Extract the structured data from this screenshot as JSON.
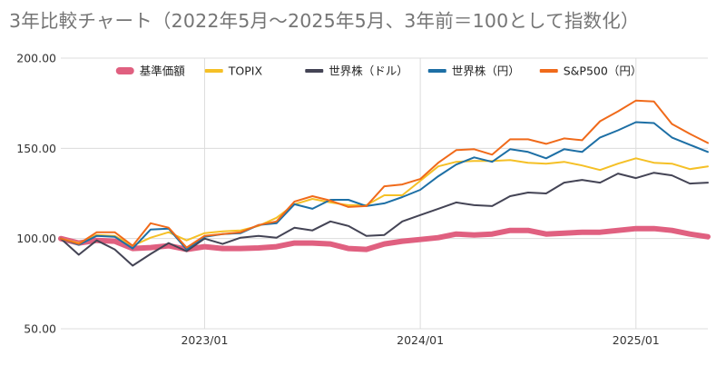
{
  "chart_data": {
    "type": "line",
    "title": "3年比較チャート（2022年5月～2025年5月、3年前＝100として指数化）",
    "xlabel": "",
    "ylabel": "",
    "ylim": [
      50,
      200
    ],
    "yticks": [
      "50.00",
      "100.00",
      "150.00",
      "200.00"
    ],
    "xticks": [
      {
        "label": "2023/01",
        "index": 8
      },
      {
        "label": "2024/01",
        "index": 20
      },
      {
        "label": "2025/01",
        "index": 32
      }
    ],
    "x": [
      "2022/05",
      "2022/06",
      "2022/07",
      "2022/08",
      "2022/09",
      "2022/10",
      "2022/11",
      "2022/12",
      "2023/01",
      "2023/02",
      "2023/03",
      "2023/04",
      "2023/05",
      "2023/06",
      "2023/07",
      "2023/08",
      "2023/09",
      "2023/10",
      "2023/11",
      "2023/12",
      "2024/01",
      "2024/02",
      "2024/03",
      "2024/04",
      "2024/05",
      "2024/06",
      "2024/07",
      "2024/08",
      "2024/09",
      "2024/10",
      "2024/11",
      "2024/12",
      "2025/01",
      "2025/02",
      "2025/03",
      "2025/04",
      "2025/05"
    ],
    "grid": true,
    "legend_position": "top",
    "series": [
      {
        "name": "基準価額",
        "color": "#e06080",
        "width": 6,
        "values": [
          100,
          97.5,
          99,
          98.5,
          94.5,
          95,
          96,
          94,
          95.5,
          94.5,
          94.5,
          94.8,
          95.5,
          97.5,
          97.5,
          97,
          94.5,
          94,
          97,
          98.5,
          99.5,
          100.5,
          102.5,
          102,
          102.5,
          104.5,
          104.5,
          102.5,
          103,
          103.5,
          103.5,
          104.5,
          105.5,
          105.5,
          104.5,
          102.5,
          101
        ]
      },
      {
        "name": "TOPIX",
        "color": "#f5c026",
        "width": 2,
        "values": [
          100,
          97.5,
          102,
          101.5,
          96,
          100.5,
          103.5,
          99,
          103,
          104,
          104.5,
          107,
          111.5,
          119,
          122,
          120,
          118.5,
          118.5,
          124,
          124,
          132,
          140,
          142.5,
          143,
          143,
          143.5,
          142,
          141.5,
          142.5,
          140.5,
          138,
          141.5,
          144.5,
          142,
          141.5,
          138.5,
          140
        ]
      },
      {
        "name": "世界株（ドル）",
        "color": "#444455",
        "width": 2,
        "values": [
          100,
          91,
          99,
          94,
          85,
          91.5,
          97.5,
          93,
          100,
          97,
          100.5,
          101.5,
          100.5,
          106,
          104.5,
          109.5,
          107,
          101.5,
          102,
          109.5,
          113,
          116.5,
          120,
          118.5,
          118,
          123.5,
          125.5,
          125,
          131,
          132.5,
          131,
          136,
          133.5,
          136.5,
          135,
          130.5,
          131
        ]
      },
      {
        "name": "世界株（円）",
        "color": "#1d6fa5",
        "width": 2,
        "values": [
          100,
          96.5,
          101.5,
          101,
          94.5,
          105,
          105.5,
          94,
          101,
          102.5,
          103,
          107.5,
          108.5,
          119,
          116.5,
          121.5,
          121.5,
          118,
          119.5,
          123,
          127,
          134.5,
          141,
          145,
          142.5,
          149.5,
          148,
          144.5,
          149.5,
          148,
          156,
          160,
          164.5,
          164,
          156,
          152,
          148
        ]
      },
      {
        "name": "S&P500（円）",
        "color": "#f06a1a",
        "width": 2,
        "values": [
          100,
          97,
          103.5,
          103.5,
          96,
          108.5,
          106,
          95,
          101.5,
          102.5,
          103.5,
          107.5,
          109.5,
          120.5,
          123.5,
          121,
          117.5,
          118,
          129,
          130,
          133,
          142,
          149,
          149.5,
          146.5,
          155,
          155,
          152.5,
          155.5,
          154.5,
          165,
          170.5,
          176.5,
          176,
          163.5,
          158,
          153
        ]
      }
    ]
  }
}
